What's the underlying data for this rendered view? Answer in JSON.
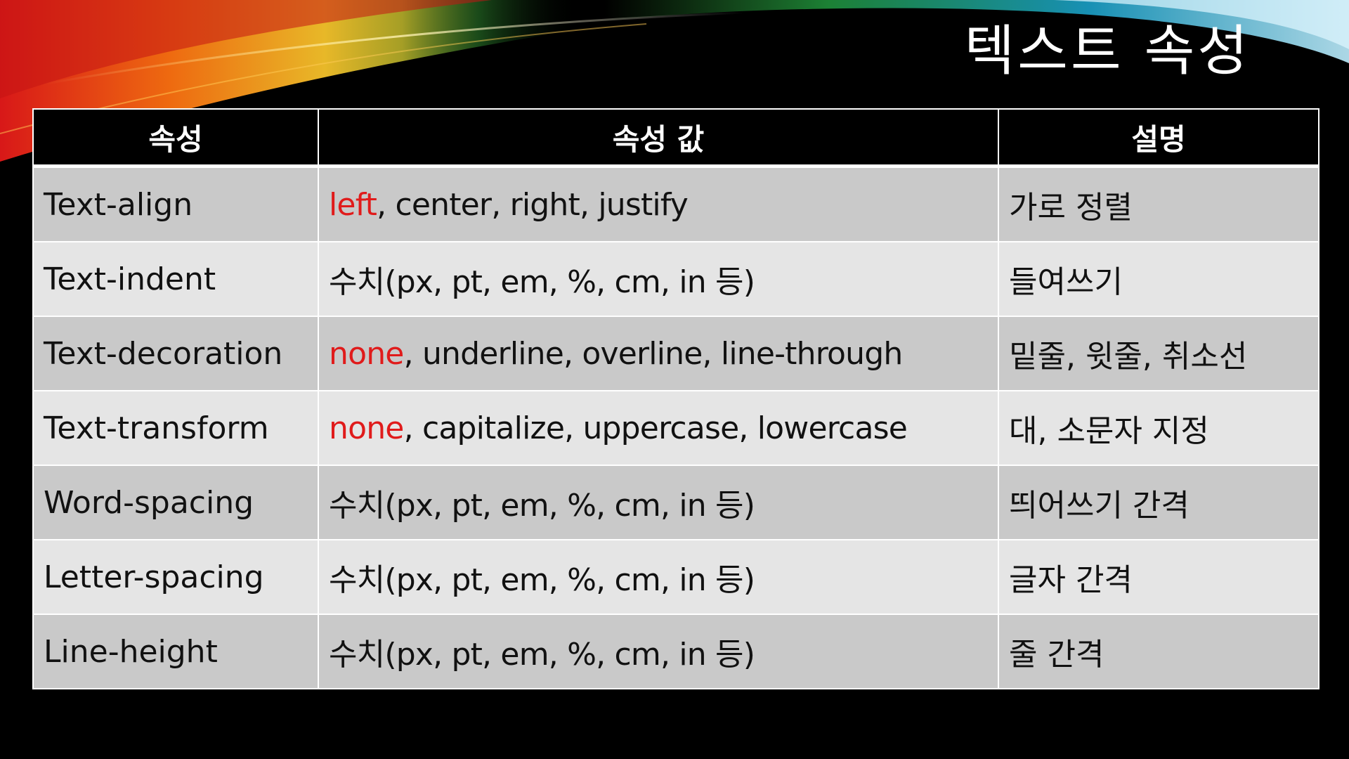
{
  "slide": {
    "title": "텍스트 속성",
    "colors": {
      "background": "#000000",
      "header_bg": "#000000",
      "header_text": "#ffffff",
      "row_dark": "#c9c9c9",
      "row_light": "#e5e5e5",
      "default_highlight": "#e01b1b"
    }
  },
  "table": {
    "headers": [
      "속성",
      "속성 값",
      "설명"
    ],
    "rows": [
      {
        "property": "Text-align",
        "values_highlight": "left",
        "values_rest": ", center, right, justify",
        "description": "가로 정렬"
      },
      {
        "property": "Text-indent",
        "values_highlight": "",
        "values_rest": "수치(px, pt, em, %, cm, in 등)",
        "description": "들여쓰기"
      },
      {
        "property": "Text-decoration",
        "values_highlight": "none",
        "values_rest": ", underline, overline, line-through",
        "description": "밑줄, 윗줄, 취소선"
      },
      {
        "property": "Text-transform",
        "values_highlight": "none",
        "values_rest": ", capitalize, uppercase, lowercase",
        "description": "대, 소문자 지정"
      },
      {
        "property": "Word-spacing",
        "values_highlight": "",
        "values_rest": "수치(px, pt, em, %, cm, in 등)",
        "description": "띄어쓰기 간격"
      },
      {
        "property": "Letter-spacing",
        "values_highlight": "",
        "values_rest": "수치(px, pt, em, %, cm, in 등)",
        "description": "글자 간격"
      },
      {
        "property": "Line-height",
        "values_highlight": "",
        "values_rest": "수치(px, pt, em, %, cm, in 등)",
        "description": "줄 간격"
      }
    ]
  }
}
